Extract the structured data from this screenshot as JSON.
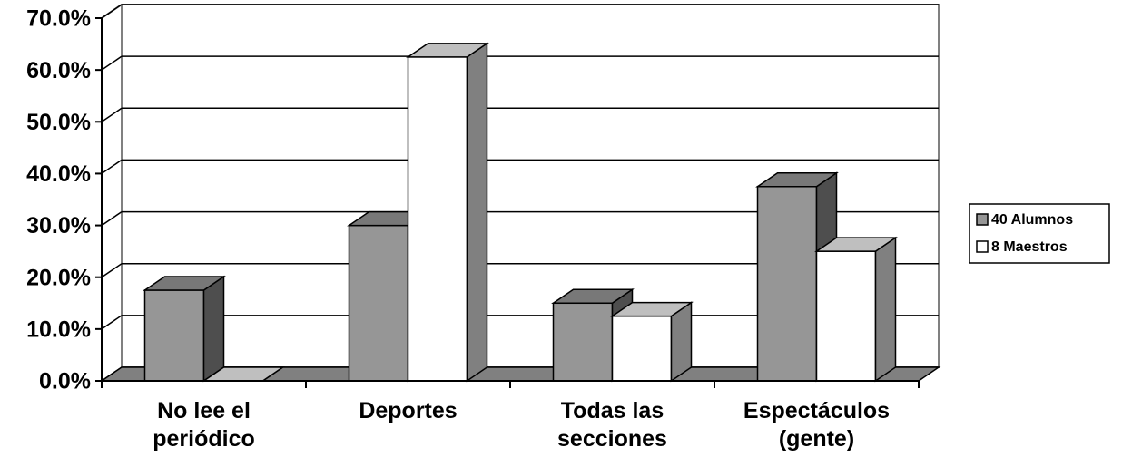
{
  "chart_data": {
    "type": "bar3d",
    "categories": [
      "No lee el periódico",
      "Deportes",
      "Todas las secciones",
      "Espectáculos (gente)"
    ],
    "series": [
      {
        "name": "40 Alumnos",
        "color": "#969696",
        "values": [
          17.5,
          30,
          15,
          37.5
        ]
      },
      {
        "name": "8 Maestros",
        "color": "#ffffff",
        "values": [
          0,
          62.5,
          12.5,
          25
        ]
      }
    ],
    "ylim": [
      0,
      70
    ],
    "yticks": [
      {
        "value": 0,
        "label": "0.0%"
      },
      {
        "value": 10,
        "label": "10.0%"
      },
      {
        "value": 20,
        "label": "20.0%"
      },
      {
        "value": 30,
        "label": "30.0%"
      },
      {
        "value": 40,
        "label": "40.0%"
      },
      {
        "value": 50,
        "label": "50.0%"
      },
      {
        "value": 60,
        "label": "60.0%"
      },
      {
        "value": 70,
        "label": "70.0%"
      }
    ],
    "grid": true,
    "legend": "right"
  }
}
